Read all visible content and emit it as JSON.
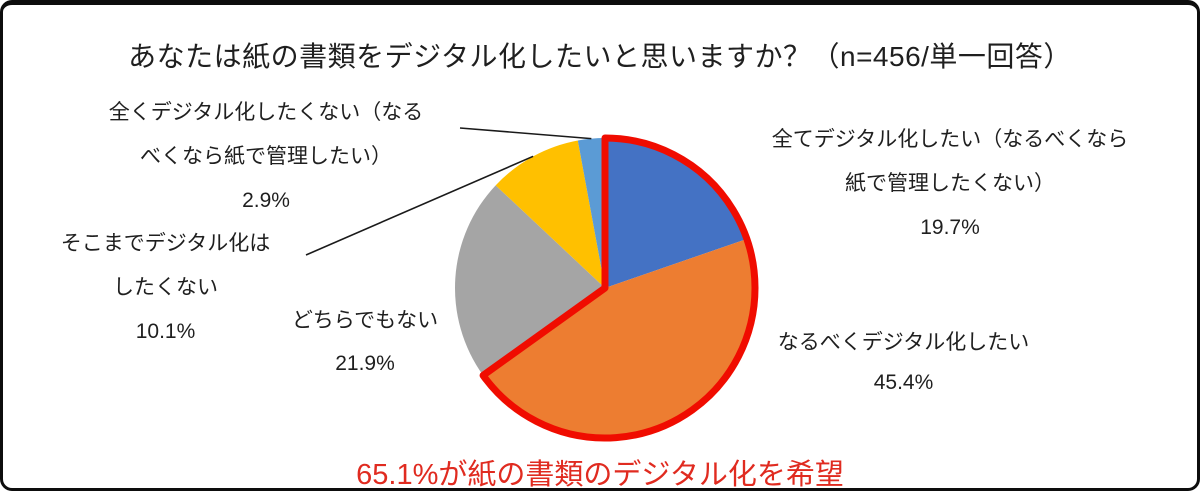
{
  "title": "あなたは紙の書類をデジタル化したいと思いますか？（n=456/単一回答）",
  "caption": "65.1%が紙の書類のデジタル化を希望",
  "colors": {
    "highlight_outline": "#f00c00",
    "caption_text": "#e02b20",
    "leader_line": "#1a1a1a",
    "text": "#1f1f1f"
  },
  "chart_data": {
    "type": "pie",
    "title": "あなたは紙の書類をデジタル化したいと思いますか？（n=456/単一回答）",
    "n": 456,
    "answer_type": "単一回答",
    "start_angle_deg": 0,
    "direction": "clockwise",
    "slices": [
      {
        "label": "全てデジタル化したい（なるべくなら紙で管理したくない）",
        "value": 19.7,
        "color": "#4472c4",
        "highlighted": true
      },
      {
        "label": "なるべくデジタル化したい",
        "value": 45.4,
        "color": "#ed7d31",
        "highlighted": true
      },
      {
        "label": "どちらでもない",
        "value": 21.9,
        "color": "#a5a5a5",
        "highlighted": false
      },
      {
        "label": "そこまでデジタル化はしたくない",
        "value": 10.1,
        "color": "#ffc000",
        "highlighted": false
      },
      {
        "label": "全くデジタル化したくない（なるべくなら紙で管理したい）",
        "value": 2.9,
        "color": "#5b9bd5",
        "highlighted": false
      }
    ],
    "highlight_total_pct": 65.1,
    "annotation": "65.1%が紙の書類のデジタル化を希望",
    "legend_position": "none",
    "grid": false
  },
  "callouts": [
    {
      "lines": [
        "全くデジタル化したくない（なる",
        "べくなら紙で管理したい）"
      ],
      "pct": "2.9%"
    },
    {
      "lines": [
        "そこまでデジタル化は",
        "したくない"
      ],
      "pct": "10.1%"
    },
    {
      "lines": [
        "どちらでもない"
      ],
      "pct": "21.9%"
    },
    {
      "lines": [
        "全てデジタル化したい（なるべくなら",
        "紙で管理したくない）"
      ],
      "pct": "19.7%"
    },
    {
      "lines": [
        "なるべくデジタル化したい"
      ],
      "pct": "45.4%"
    }
  ]
}
